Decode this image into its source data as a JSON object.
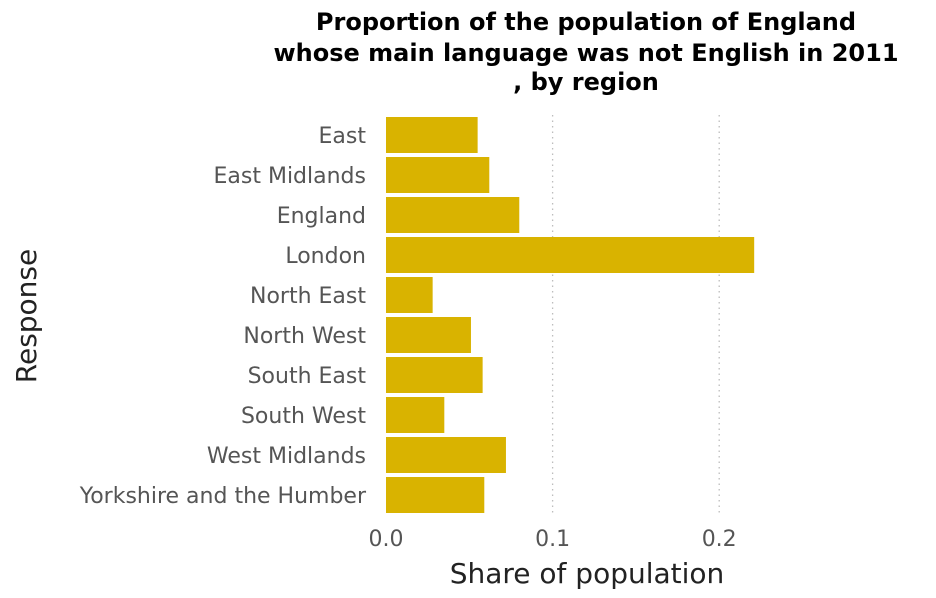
{
  "chart_data": {
    "type": "bar",
    "orientation": "horizontal",
    "title": "Proportion of the population of England whose main language was not English in 2011 , by region",
    "title_lines": [
      "Proportion of the population of England",
      "whose main language was not English in 2011",
      ", by region"
    ],
    "xlabel": "Share of population",
    "ylabel": "Response",
    "categories": [
      "East",
      "East Midlands",
      "England",
      "London",
      "North East",
      "North West",
      "South East",
      "South West",
      "West Midlands",
      "Yorkshire and the Humber"
    ],
    "values": [
      0.055,
      0.062,
      0.08,
      0.221,
      0.028,
      0.051,
      0.058,
      0.035,
      0.072,
      0.059
    ],
    "xlim": [
      0,
      0.24
    ],
    "xticks": [
      0.0,
      0.1,
      0.2
    ],
    "xtick_labels": [
      "0.0",
      "0.1",
      "0.2"
    ],
    "grid": "vertical dotted",
    "bar_color": "#D9B300"
  }
}
